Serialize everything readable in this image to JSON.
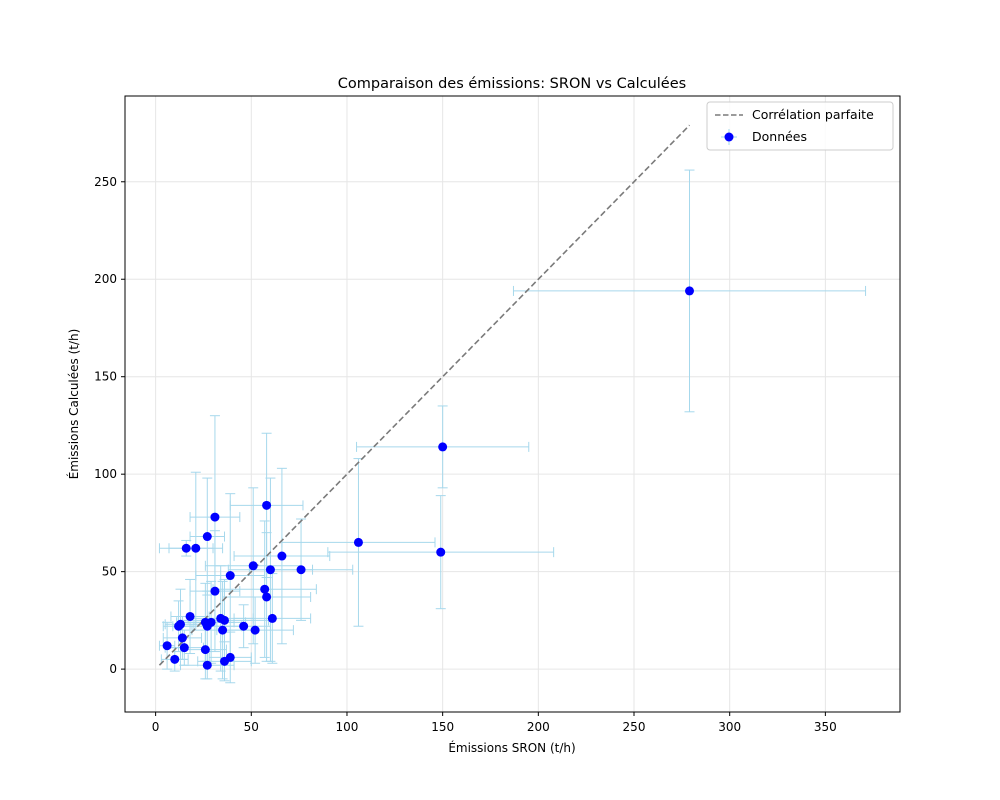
{
  "chart_data": {
    "type": "scatter",
    "title": "Comparaison des émissions: SRON vs Calculées",
    "xlabel": "Émissions SRON (t/h)",
    "ylabel": "Émissions Calculées (t/h)",
    "xlim": [
      -16,
      389
    ],
    "ylim": [
      -22,
      294
    ],
    "xticks": [
      0,
      50,
      100,
      150,
      200,
      250,
      300,
      350
    ],
    "yticks": [
      0,
      50,
      100,
      150,
      200,
      250
    ],
    "grid": true,
    "legend_position": "top-right",
    "reference_line": {
      "name": "Corrélation parfaite",
      "x": [
        2,
        279
      ],
      "y": [
        2,
        279
      ],
      "style": "dashed",
      "color": "#7a7a7a"
    },
    "series": [
      {
        "name": "Données",
        "marker_color": "#0000ff",
        "errorbar_color": "#a6d8ec",
        "points": [
          {
            "x": 279,
            "y": 194,
            "xerr": 92,
            "yerr": 62
          },
          {
            "x": 150,
            "y": 114,
            "xerr": 45,
            "yerr": 21
          },
          {
            "x": 149,
            "y": 60,
            "xerr": 59,
            "yerr": 29
          },
          {
            "x": 106,
            "y": 65,
            "xerr": 40,
            "yerr": 43
          },
          {
            "x": 76,
            "y": 51,
            "xerr": 27,
            "yerr": 26
          },
          {
            "x": 66,
            "y": 58,
            "xerr": 25,
            "yerr": 45
          },
          {
            "x": 58,
            "y": 84,
            "xerr": 19,
            "yerr": 37
          },
          {
            "x": 60,
            "y": 51,
            "xerr": 22,
            "yerr": 47
          },
          {
            "x": 57,
            "y": 41,
            "xerr": 27,
            "yerr": 35
          },
          {
            "x": 58,
            "y": 37,
            "xerr": 23,
            "yerr": 33
          },
          {
            "x": 61,
            "y": 26,
            "xerr": 20,
            "yerr": 23
          },
          {
            "x": 52,
            "y": 20,
            "xerr": 20,
            "yerr": 17
          },
          {
            "x": 51,
            "y": 53,
            "xerr": 25,
            "yerr": 40
          },
          {
            "x": 46,
            "y": 22,
            "xerr": 14,
            "yerr": 11
          },
          {
            "x": 39,
            "y": 48,
            "xerr": 18,
            "yerr": 42
          },
          {
            "x": 39,
            "y": 6,
            "xerr": 11,
            "yerr": 13
          },
          {
            "x": 36,
            "y": 25,
            "xerr": 23,
            "yerr": 21
          },
          {
            "x": 35,
            "y": 20,
            "xerr": 16,
            "yerr": 25
          },
          {
            "x": 34,
            "y": 26,
            "xerr": 17,
            "yerr": 27
          },
          {
            "x": 36,
            "y": 4,
            "xerr": 14,
            "yerr": 10
          },
          {
            "x": 31,
            "y": 78,
            "xerr": 13,
            "yerr": 52
          },
          {
            "x": 31,
            "y": 40,
            "xerr": 13,
            "yerr": 31
          },
          {
            "x": 29,
            "y": 24,
            "xerr": 18,
            "yerr": 21
          },
          {
            "x": 27,
            "y": 68,
            "xerr": 9,
            "yerr": 30
          },
          {
            "x": 27,
            "y": 22,
            "xerr": 18,
            "yerr": 18
          },
          {
            "x": 26,
            "y": 24,
            "xerr": 15,
            "yerr": 20
          },
          {
            "x": 26,
            "y": 10,
            "xerr": 11,
            "yerr": 15
          },
          {
            "x": 27,
            "y": 2,
            "xerr": 14,
            "yerr": 7
          },
          {
            "x": 21,
            "y": 62,
            "xerr": 14,
            "yerr": 39
          },
          {
            "x": 18,
            "y": 27,
            "xerr": 10,
            "yerr": 19
          },
          {
            "x": 14,
            "y": 16,
            "xerr": 10,
            "yerr": 11
          },
          {
            "x": 15,
            "y": 11,
            "xerr": 10,
            "yerr": 9
          },
          {
            "x": 13,
            "y": 23,
            "xerr": 8,
            "yerr": 18
          },
          {
            "x": 12,
            "y": 22,
            "xerr": 8,
            "yerr": 13
          },
          {
            "x": 10,
            "y": 5,
            "xerr": 7,
            "yerr": 6
          },
          {
            "x": 6,
            "y": 12,
            "xerr": 4,
            "yerr": 12
          },
          {
            "x": 16,
            "y": 62,
            "xerr": 14,
            "yerr": 4
          }
        ]
      }
    ]
  }
}
